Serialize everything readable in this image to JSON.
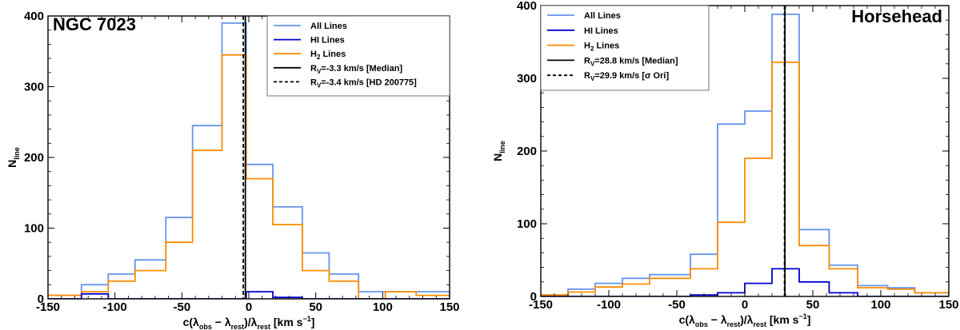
{
  "chart_data": [
    {
      "type": "line",
      "title": "NGC 7023",
      "xlabel": "c(λobs − λrest)/λrest [km s⁻¹]",
      "ylabel": "Nline",
      "xlim": [
        -150,
        150
      ],
      "ylim": [
        0,
        400
      ],
      "xticks": [
        -150,
        -100,
        -50,
        0,
        50,
        100,
        150
      ],
      "yticks": [
        0,
        100,
        200,
        300,
        400
      ],
      "bin_edges": [
        -175,
        -150,
        -125,
        -105,
        -85,
        -62,
        -42,
        -20,
        -2,
        18,
        40,
        60,
        82,
        102,
        125,
        150
      ],
      "series": [
        {
          "name": "All Lines",
          "color": "#6495ed",
          "values": [
            5,
            5,
            20,
            35,
            55,
            115,
            245,
            390,
            190,
            130,
            65,
            35,
            10,
            10,
            10
          ]
        },
        {
          "name": "HI Lines",
          "color": "#0000cd",
          "values": [
            0,
            0,
            7,
            0,
            0,
            0,
            0,
            0,
            10,
            2,
            0,
            0,
            0,
            0,
            0
          ]
        },
        {
          "name": "H2 Lines",
          "color": "#ff8c00",
          "values": [
            5,
            5,
            10,
            25,
            40,
            80,
            210,
            345,
            170,
            105,
            40,
            25,
            0,
            10,
            5
          ]
        }
      ],
      "vlines": [
        {
          "label": "Rv=-3.3 km/s [Median]",
          "x": -3.3,
          "style": "solid"
        },
        {
          "label": "Rv=-3.4 km/s [HD 200775]",
          "x": -3.4,
          "style": "dashed"
        }
      ],
      "legend_position": "top-right"
    },
    {
      "type": "line",
      "title": "Horsehead",
      "xlabel": "c(λobs − λrest)/λrest [km s⁻¹]",
      "ylabel": "Nline",
      "xlim": [
        -150,
        150
      ],
      "ylim": [
        0,
        400
      ],
      "xticks": [
        -150,
        -100,
        -50,
        0,
        50,
        100,
        150
      ],
      "yticks": [
        0,
        100,
        200,
        300,
        400
      ],
      "bin_edges": [
        -150,
        -130,
        -110,
        -90,
        -70,
        -40,
        -20,
        0,
        20,
        40,
        62,
        83,
        105,
        125,
        150
      ],
      "series": [
        {
          "name": "All Lines",
          "color": "#6495ed",
          "values": [
            2,
            10,
            18,
            25,
            30,
            58,
            237,
            255,
            388,
            92,
            43,
            15,
            12,
            5
          ]
        },
        {
          "name": "HI Lines",
          "color": "#0000cd",
          "values": [
            0,
            0,
            0,
            0,
            0,
            2,
            5,
            18,
            38,
            20,
            5,
            0,
            0,
            0
          ]
        },
        {
          "name": "H2 Lines",
          "color": "#ff8c00",
          "values": [
            2,
            6,
            13,
            17,
            25,
            38,
            102,
            190,
            322,
            70,
            38,
            12,
            10,
            5
          ]
        }
      ],
      "vlines": [
        {
          "label": "Rv=28.8 km/s [Median]",
          "x": 28.8,
          "style": "solid"
        },
        {
          "label": "Rv=29.9 km/s [σ Ori]",
          "x": 29.9,
          "style": "dashed"
        }
      ],
      "legend_position": "top-left"
    }
  ],
  "panels": [
    {
      "title": "NGC 7023",
      "ylabel_main": "N",
      "ylabel_sub": "line",
      "legend": [
        {
          "label": "All Lines"
        },
        {
          "label": "HI Lines"
        },
        {
          "pre": "H",
          "sub": "2",
          "post": " Lines"
        },
        {
          "pre": "R",
          "sub": "V",
          "post": "=-3.3 km/s [Median]"
        },
        {
          "pre": "R",
          "sub": "V",
          "post": "=-3.4 km/s [HD 200775]"
        }
      ]
    },
    {
      "title": "Horsehead",
      "ylabel_main": "N",
      "ylabel_sub": "line",
      "legend": [
        {
          "label": "All Lines"
        },
        {
          "label": "HI Lines"
        },
        {
          "pre": "H",
          "sub": "2",
          "post": " Lines"
        },
        {
          "pre": "R",
          "sub": "V",
          "post": "=28.8 km/s [Median]"
        },
        {
          "pre": "R",
          "sub": "V",
          "post": "=29.9 km/s [σ Ori]"
        }
      ]
    }
  ],
  "xlabel_parts": {
    "pre": "c(λ",
    "sub1": "obs",
    "mid": " − λ",
    "sub2": "rest",
    "mid2": ")/λ",
    "sub3": "rest",
    "post": " [km s",
    "sup": "−1",
    "end": "]"
  }
}
